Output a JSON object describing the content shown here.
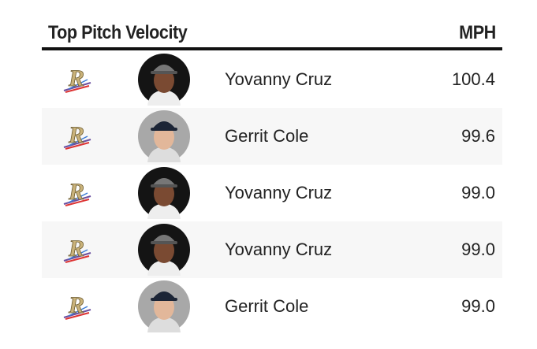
{
  "header": {
    "title": "Top Pitch Velocity",
    "unit": "MPH"
  },
  "table": {
    "rows": [
      {
        "player": "Yovanny Cruz",
        "mph": "100.4"
      },
      {
        "player": "Gerrit Cole",
        "mph": "99.6"
      },
      {
        "player": "Yovanny Cruz",
        "mph": "99.0"
      },
      {
        "player": "Yovanny Cruz",
        "mph": "99.0"
      },
      {
        "player": "Gerrit Cole",
        "mph": "99.0"
      }
    ]
  }
}
